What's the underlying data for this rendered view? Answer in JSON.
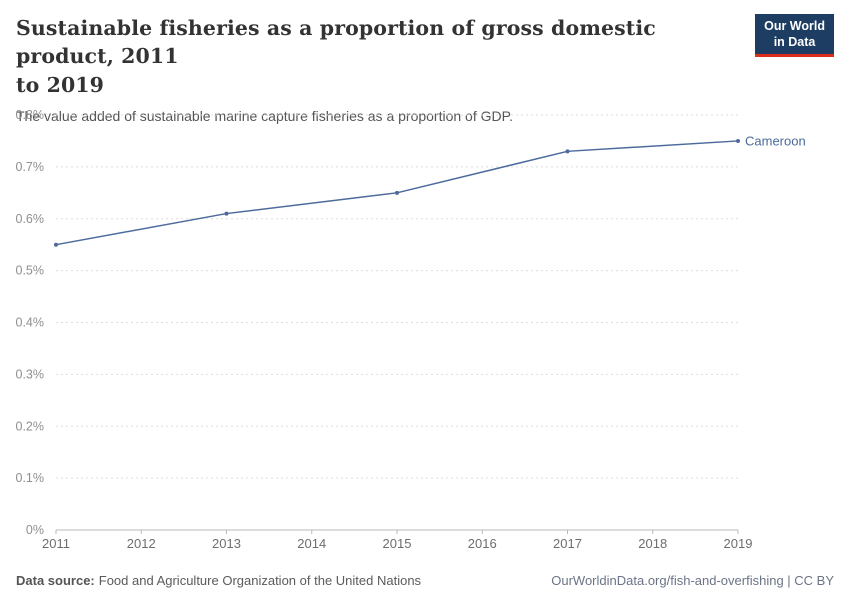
{
  "header": {
    "title_line1": "Sustainable fisheries as a proportion of gross domestic product, 2011",
    "title_line2": "to 2019",
    "subtitle": "The value added of sustainable marine capture fisheries as a proportion of GDP.",
    "logo_line1": "Our World",
    "logo_line2": "in Data",
    "logo_bg_color": "#1d3d63",
    "logo_accent_color": "#dc2e1c"
  },
  "chart_data": {
    "type": "line",
    "title": "Sustainable fisheries as a proportion of gross domestic product, 2011 to 2019",
    "subtitle": "The value added of sustainable marine capture fisheries as a proportion of GDP.",
    "xlabel": "",
    "ylabel": "",
    "xlim": [
      2011,
      2019
    ],
    "ylim": [
      0,
      0.8
    ],
    "grid": true,
    "legend_position": "end-of-line",
    "xticks": [
      2011,
      2012,
      2013,
      2014,
      2015,
      2016,
      2017,
      2018,
      2019
    ],
    "yticks": [
      {
        "value": 0,
        "label": "0%"
      },
      {
        "value": 0.1,
        "label": "0.1%"
      },
      {
        "value": 0.2,
        "label": "0.2%"
      },
      {
        "value": 0.3,
        "label": "0.3%"
      },
      {
        "value": 0.4,
        "label": "0.4%"
      },
      {
        "value": 0.5,
        "label": "0.5%"
      },
      {
        "value": 0.6,
        "label": "0.6%"
      },
      {
        "value": 0.7,
        "label": "0.7%"
      },
      {
        "value": 0.8,
        "label": "0.8%"
      }
    ],
    "series": [
      {
        "name": "Cameroon",
        "color": "#4C6A9C",
        "unit": "%",
        "x": [
          2011,
          2013,
          2015,
          2017,
          2019
        ],
        "values": [
          0.55,
          0.61,
          0.65,
          0.73,
          0.75
        ]
      }
    ]
  },
  "footer": {
    "source_label": "Data source:",
    "source_text": "Food and Agriculture Organization of the United Nations",
    "credit": "OurWorldinData.org/fish-and-overfishing | CC BY"
  }
}
